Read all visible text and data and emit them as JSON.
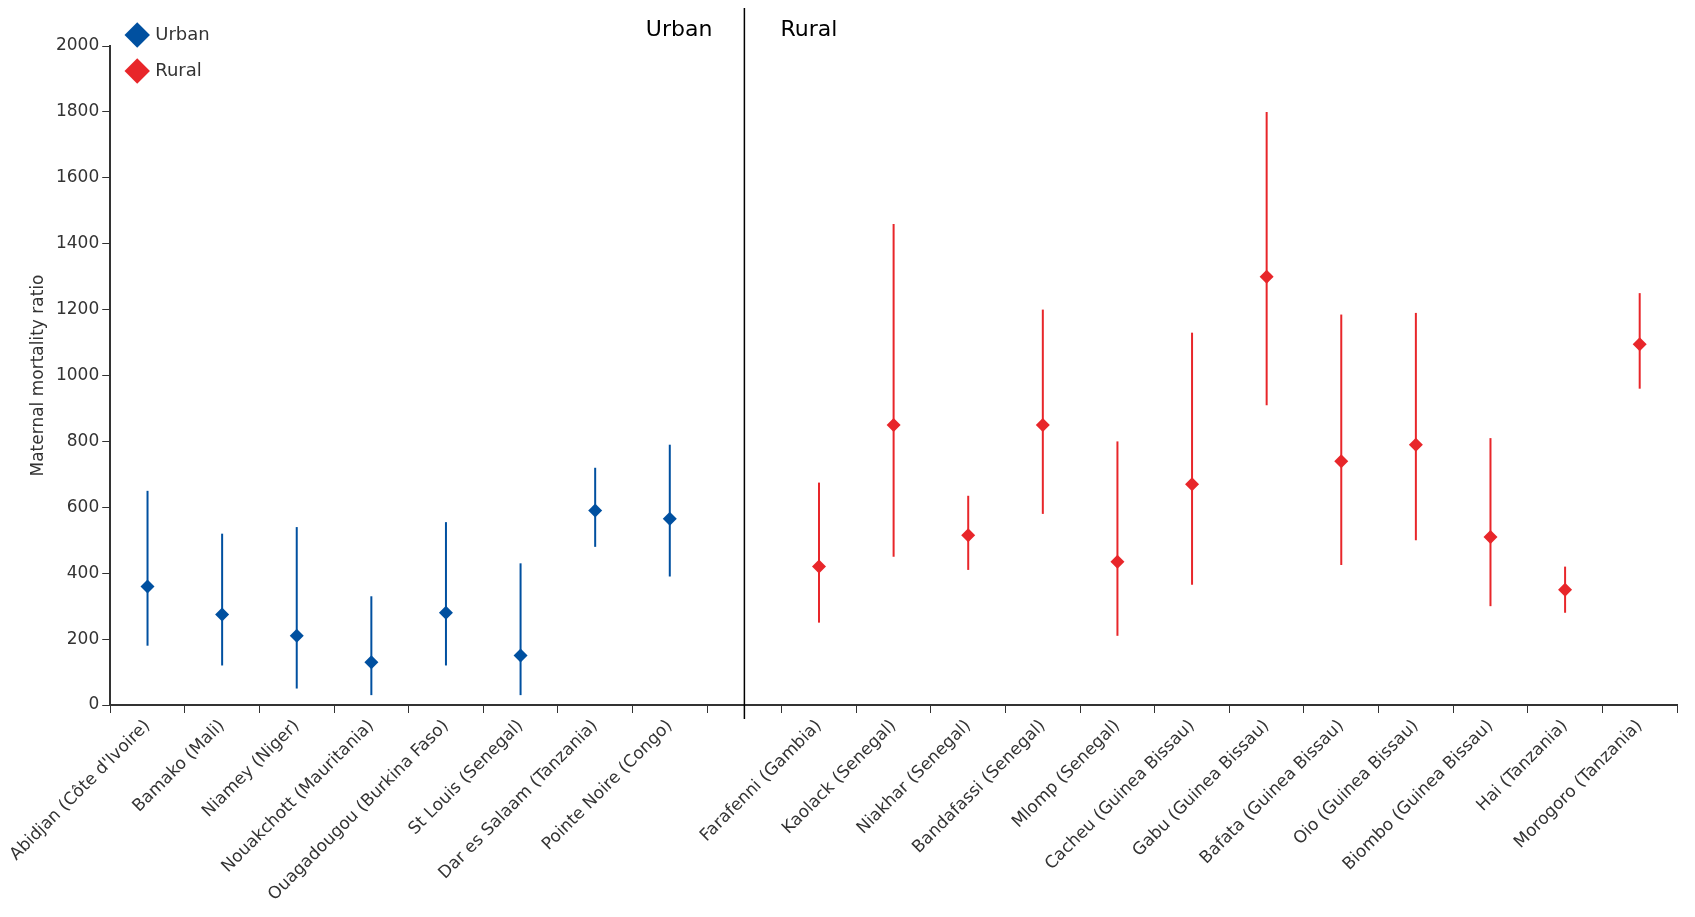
{
  "chart_data": {
    "type": "scatter",
    "ylabel": "Maternal mortality ratio",
    "categories": [
      "Abidjan (Côte d'Ivoire)",
      "Bamako (Mali)",
      "Niamey (Niger)",
      "Nouakchott (Mauritania)",
      "Ouagadougou (Burkina Faso)",
      "St Louis (Senegal)",
      "Dar es Salaam (Tanzania)",
      "Pointe Noire (Congo)",
      null,
      "Farafenni (Gambia)",
      "Kaolack (Senegal)",
      "Niakhar (Senegal)",
      "Bandafassi (Senegal)",
      "Mlomp (Senegal)",
      "Cacheu (Guinea Bissau)",
      "Gabu (Guinea Bissau)",
      "Bafata (Guinea Bissau)",
      "Oio (Guinea Bissau)",
      "Biombo (Guinea Bissau)",
      "Hai (Tanzania)",
      "Morogoro (Tanzania)"
    ],
    "series": [
      {
        "name": "Urban",
        "color": "#0050a0",
        "values": [
          360,
          275,
          210,
          130,
          280,
          150,
          590,
          565,
          null,
          null,
          null,
          null,
          null,
          null,
          null,
          null,
          null,
          null,
          null,
          null,
          null
        ],
        "errors": [
          [
            180,
            650
          ],
          [
            120,
            520
          ],
          [
            50,
            540
          ],
          [
            30,
            330
          ],
          [
            120,
            555
          ],
          [
            30,
            430
          ],
          [
            480,
            720
          ],
          [
            390,
            790
          ],
          null,
          null,
          null,
          null,
          null,
          null,
          null,
          null,
          null,
          null,
          null,
          null,
          null
        ]
      },
      {
        "name": "Rural",
        "color": "#e8262a",
        "values": [
          null,
          null,
          null,
          null,
          null,
          null,
          null,
          null,
          null,
          420,
          850,
          515,
          850,
          435,
          670,
          1300,
          740,
          790,
          510,
          350,
          1095
        ],
        "errors": [
          null,
          null,
          null,
          null,
          null,
          null,
          null,
          null,
          null,
          [
            250,
            675
          ],
          [
            450,
            1460
          ],
          [
            410,
            635
          ],
          [
            580,
            1200
          ],
          [
            210,
            800
          ],
          [
            365,
            1130
          ],
          [
            910,
            1800
          ],
          [
            425,
            1185
          ],
          [
            500,
            1190
          ],
          [
            300,
            810
          ],
          [
            280,
            420
          ],
          [
            960,
            1250
          ]
        ]
      }
    ],
    "ylim": [
      0,
      2000
    ],
    "yticks": [
      0,
      200,
      400,
      600,
      800,
      1000,
      1200,
      1400,
      1600,
      1800,
      2000
    ],
    "marker": "diamond",
    "legend": "top left",
    "annotations": [
      "Urban",
      "Rural"
    ]
  }
}
